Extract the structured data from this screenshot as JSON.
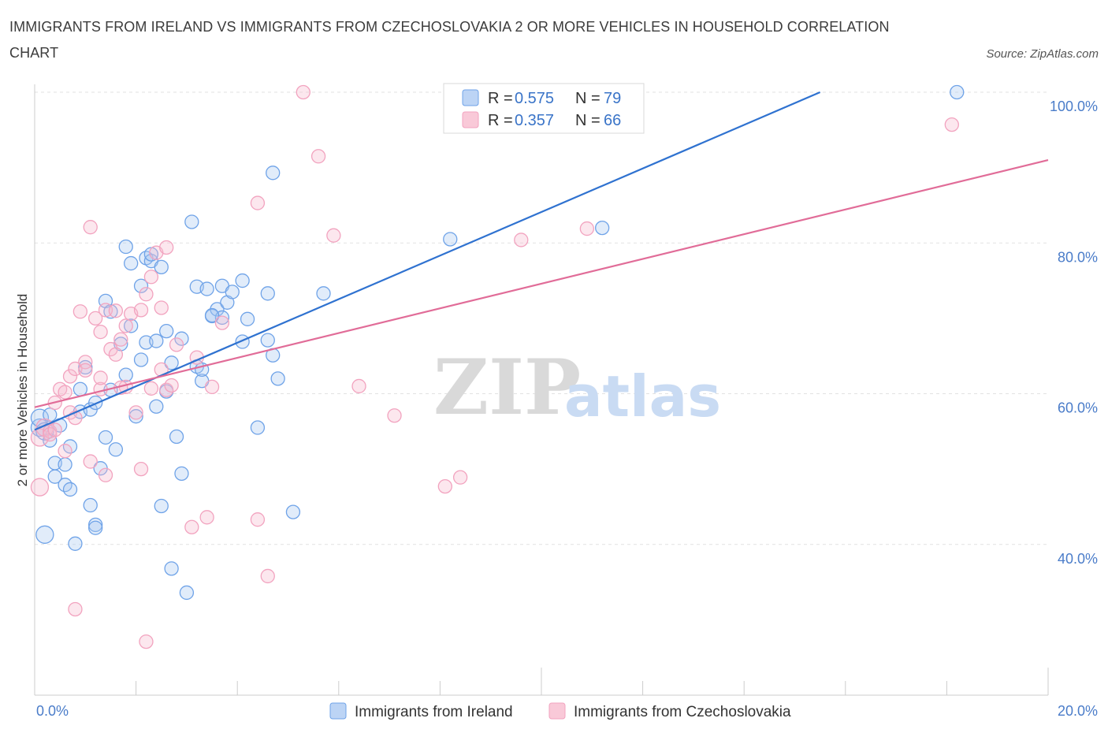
{
  "title": "IMMIGRANTS FROM IRELAND VS IMMIGRANTS FROM CZECHOSLOVAKIA 2 OR MORE VEHICLES IN HOUSEHOLD CORRELATION CHART",
  "source": "Source: ZipAtlas.com",
  "watermark": {
    "zip": "ZIP",
    "atlas": "atlas"
  },
  "legend": {
    "r_label": "R = ",
    "n_label": "N = ",
    "series": [
      {
        "r": "0.575",
        "n": "79"
      },
      {
        "r": "0.357",
        "n": "66"
      }
    ]
  },
  "chart_data": {
    "type": "scatter",
    "title": "IMMIGRANTS FROM IRELAND VS IMMIGRANTS FROM CZECHOSLOVAKIA 2 OR MORE VEHICLES IN HOUSEHOLD CORRELATION CHART",
    "xlabel": "",
    "ylabel": "2 or more Vehicles in Household",
    "xlim": [
      0,
      20
    ],
    "ylim": [
      20,
      100
    ],
    "x_tick_labels": [
      "0.0%",
      "20.0%"
    ],
    "y_ticks": [
      40,
      60,
      80,
      100
    ],
    "y_tick_labels": [
      "40.0%",
      "60.0%",
      "80.0%",
      "100.0%"
    ],
    "grid": true,
    "legend_position": "top-center",
    "series": [
      {
        "name": "Immigrants from Ireland",
        "color": "#6fa3e8",
        "line_color": "#2f72d0",
        "r": 0.575,
        "n": 79,
        "trend": [
          [
            0,
            55.2
          ],
          [
            15.5,
            100
          ]
        ],
        "points": [
          [
            0.1,
            55.5
          ],
          [
            0.1,
            56.8
          ],
          [
            0.2,
            41.3
          ],
          [
            0.2,
            55.0
          ],
          [
            0.3,
            53.8
          ],
          [
            0.3,
            57.2
          ],
          [
            0.4,
            49.0
          ],
          [
            0.4,
            50.8
          ],
          [
            0.5,
            55.8
          ],
          [
            0.6,
            47.9
          ],
          [
            0.6,
            50.6
          ],
          [
            0.7,
            47.3
          ],
          [
            0.7,
            53.0
          ],
          [
            0.8,
            40.1
          ],
          [
            0.9,
            60.6
          ],
          [
            0.9,
            57.6
          ],
          [
            1.0,
            63.5
          ],
          [
            1.1,
            57.9
          ],
          [
            1.1,
            45.2
          ],
          [
            1.2,
            58.8
          ],
          [
            1.2,
            42.6
          ],
          [
            1.2,
            42.2
          ],
          [
            1.3,
            50.1
          ],
          [
            1.4,
            54.2
          ],
          [
            1.4,
            72.3
          ],
          [
            1.5,
            60.5
          ],
          [
            1.5,
            70.9
          ],
          [
            1.6,
            52.6
          ],
          [
            1.7,
            66.6
          ],
          [
            1.8,
            62.5
          ],
          [
            1.8,
            79.5
          ],
          [
            1.9,
            69.0
          ],
          [
            1.9,
            77.3
          ],
          [
            2.0,
            57.0
          ],
          [
            2.1,
            64.5
          ],
          [
            2.1,
            74.3
          ],
          [
            2.2,
            78.0
          ],
          [
            2.2,
            66.8
          ],
          [
            2.3,
            77.6
          ],
          [
            2.3,
            78.5
          ],
          [
            2.4,
            58.3
          ],
          [
            2.4,
            67.0
          ],
          [
            2.5,
            76.8
          ],
          [
            2.5,
            45.1
          ],
          [
            2.6,
            68.3
          ],
          [
            2.6,
            60.3
          ],
          [
            2.7,
            36.8
          ],
          [
            2.7,
            64.1
          ],
          [
            2.8,
            54.3
          ],
          [
            2.9,
            67.3
          ],
          [
            2.9,
            49.4
          ],
          [
            3.0,
            33.6
          ],
          [
            3.1,
            82.8
          ],
          [
            3.2,
            63.6
          ],
          [
            3.2,
            74.2
          ],
          [
            3.3,
            61.7
          ],
          [
            3.3,
            63.2
          ],
          [
            3.4,
            73.9
          ],
          [
            3.5,
            70.3
          ],
          [
            3.6,
            71.2
          ],
          [
            3.7,
            74.3
          ],
          [
            3.7,
            70.1
          ],
          [
            3.8,
            72.1
          ],
          [
            3.9,
            73.5
          ],
          [
            4.1,
            75.0
          ],
          [
            4.1,
            66.9
          ],
          [
            4.2,
            69.9
          ],
          [
            4.4,
            55.5
          ],
          [
            4.6,
            73.3
          ],
          [
            4.6,
            67.1
          ],
          [
            4.7,
            65.1
          ],
          [
            4.7,
            89.3
          ],
          [
            4.8,
            62.0
          ],
          [
            5.1,
            44.3
          ],
          [
            5.7,
            73.3
          ],
          [
            8.2,
            80.5
          ],
          [
            11.2,
            82.0
          ],
          [
            18.2,
            100.0
          ],
          [
            3.5,
            70.4
          ]
        ]
      },
      {
        "name": "Immigrants from Czechoslovakia",
        "color": "#f2a3bf",
        "line_color": "#e16c98",
        "r": 0.357,
        "n": 66,
        "trend": [
          [
            0,
            58.2
          ],
          [
            20,
            91.0
          ]
        ],
        "points": [
          [
            0.1,
            54.2
          ],
          [
            0.1,
            47.6
          ],
          [
            0.2,
            55.5
          ],
          [
            0.3,
            55.0
          ],
          [
            0.3,
            54.6
          ],
          [
            0.4,
            58.8
          ],
          [
            0.4,
            55.2
          ],
          [
            0.5,
            60.6
          ],
          [
            0.6,
            52.4
          ],
          [
            0.6,
            60.2
          ],
          [
            0.7,
            62.3
          ],
          [
            0.7,
            57.5
          ],
          [
            0.8,
            56.8
          ],
          [
            0.8,
            63.3
          ],
          [
            0.8,
            31.4
          ],
          [
            0.9,
            70.9
          ],
          [
            1.0,
            64.2
          ],
          [
            1.0,
            63.1
          ],
          [
            1.1,
            51.0
          ],
          [
            1.1,
            82.1
          ],
          [
            1.2,
            70.0
          ],
          [
            1.3,
            60.6
          ],
          [
            1.3,
            62.1
          ],
          [
            1.3,
            68.2
          ],
          [
            1.4,
            71.1
          ],
          [
            1.4,
            49.2
          ],
          [
            1.5,
            65.9
          ],
          [
            1.6,
            65.2
          ],
          [
            1.6,
            71.0
          ],
          [
            1.7,
            67.2
          ],
          [
            1.8,
            69.0
          ],
          [
            1.8,
            60.9
          ],
          [
            1.9,
            70.6
          ],
          [
            2.0,
            57.5
          ],
          [
            2.1,
            71.1
          ],
          [
            2.1,
            50.0
          ],
          [
            2.2,
            73.2
          ],
          [
            2.2,
            27.1
          ],
          [
            2.3,
            75.5
          ],
          [
            2.3,
            60.7
          ],
          [
            2.4,
            78.7
          ],
          [
            2.5,
            63.2
          ],
          [
            2.5,
            71.4
          ],
          [
            2.6,
            60.5
          ],
          [
            2.6,
            79.4
          ],
          [
            2.7,
            61.1
          ],
          [
            2.8,
            66.5
          ],
          [
            3.1,
            42.3
          ],
          [
            3.2,
            64.8
          ],
          [
            3.4,
            43.6
          ],
          [
            3.5,
            60.9
          ],
          [
            3.7,
            69.4
          ],
          [
            4.4,
            85.3
          ],
          [
            4.4,
            43.3
          ],
          [
            4.6,
            35.8
          ],
          [
            5.3,
            100.0
          ],
          [
            5.6,
            91.5
          ],
          [
            5.9,
            81.0
          ],
          [
            6.4,
            61.0
          ],
          [
            7.1,
            57.1
          ],
          [
            8.1,
            47.7
          ],
          [
            8.4,
            48.9
          ],
          [
            9.6,
            80.4
          ],
          [
            10.9,
            81.9
          ],
          [
            18.1,
            95.7
          ],
          [
            1.7,
            60.8
          ]
        ]
      }
    ]
  }
}
